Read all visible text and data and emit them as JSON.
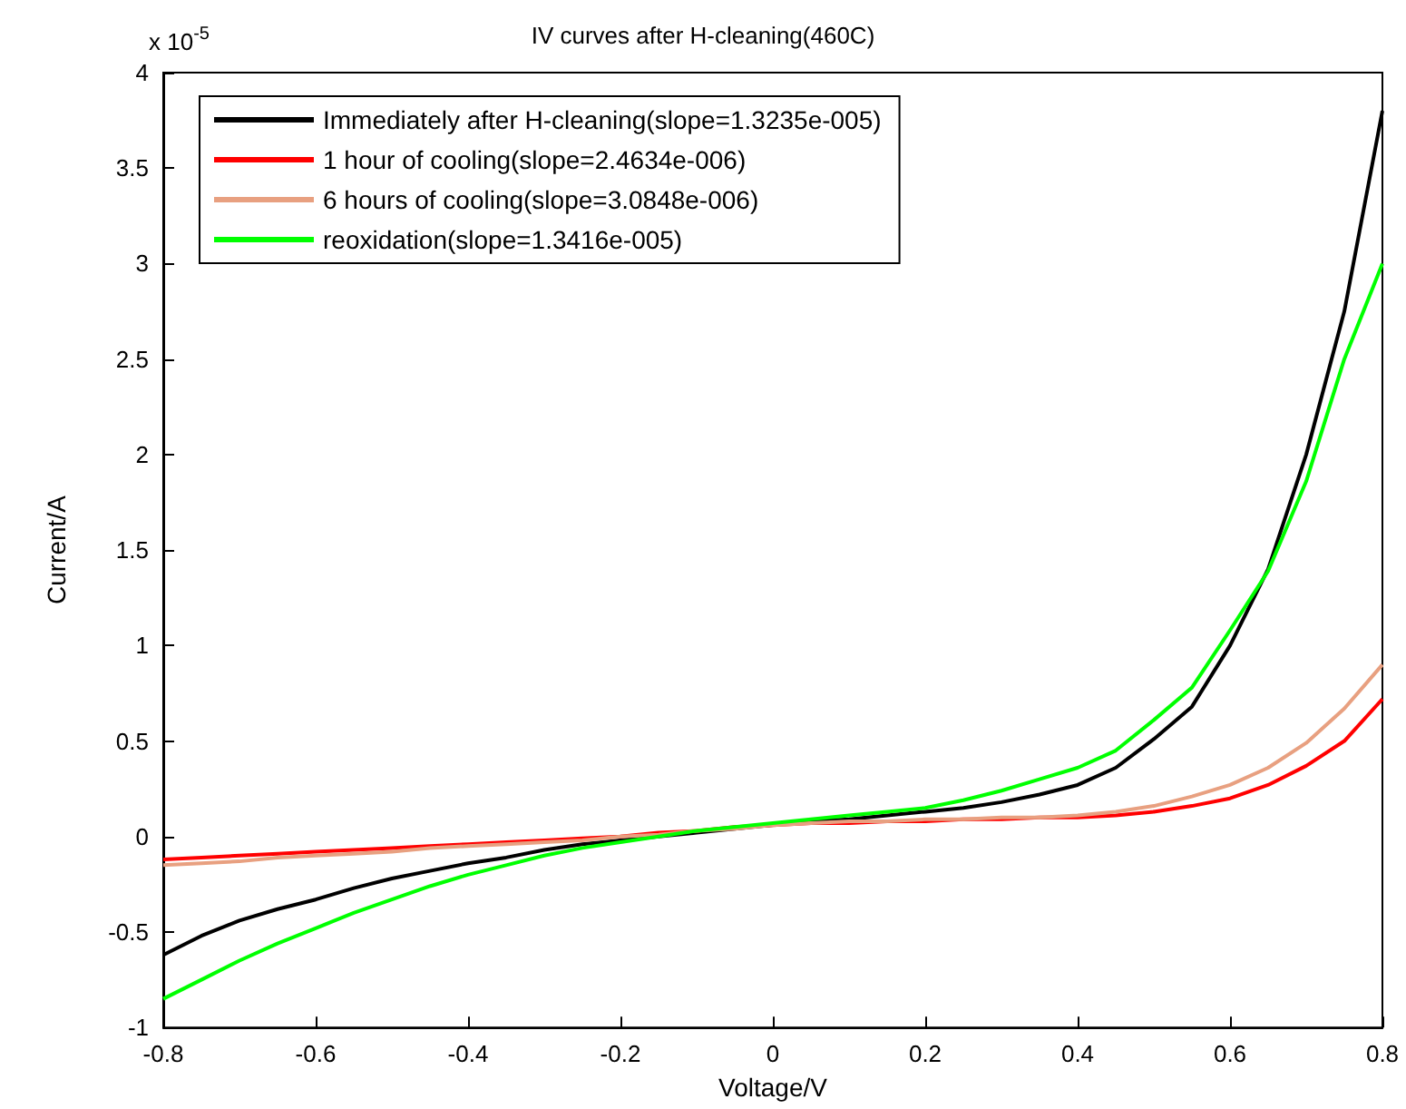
{
  "chart_data": {
    "type": "line",
    "title": "IV curves after H-cleaning(460C)",
    "xlabel": "Voltage/V",
    "ylabel": "Current/A",
    "annotations": [
      "x 10$^{-5}$"
    ],
    "x": [
      -0.8,
      -0.75,
      -0.7,
      -0.65,
      -0.6,
      -0.55,
      -0.5,
      -0.45,
      -0.4,
      -0.35,
      -0.3,
      -0.25,
      -0.2,
      -0.15,
      -0.1,
      -0.05,
      0,
      0.05,
      0.1,
      0.15,
      0.2,
      0.25,
      0.3,
      0.35,
      0.4,
      0.45,
      0.5,
      0.55,
      0.6,
      0.65,
      0.7,
      0.75,
      0.8
    ],
    "series": [
      {
        "name": "Immediately after H-cleaning(slope=1.3235e-005)",
        "color": "#000000",
        "values": [
          -0.62,
          -0.52,
          -0.44,
          -0.38,
          -0.33,
          -0.27,
          -0.22,
          -0.18,
          -0.14,
          -0.11,
          -0.07,
          -0.04,
          -0.02,
          0.0,
          0.02,
          0.04,
          0.06,
          0.08,
          0.09,
          0.11,
          0.13,
          0.15,
          0.18,
          0.22,
          0.27,
          0.36,
          0.51,
          0.68,
          1.0,
          1.4,
          2.0,
          2.75,
          3.8
        ]
      },
      {
        "name": "1 hour of cooling(slope=2.4634e-006)",
        "color": "#ff0000",
        "values": [
          -0.12,
          -0.11,
          -0.1,
          -0.09,
          -0.08,
          -0.07,
          -0.06,
          -0.05,
          -0.04,
          -0.03,
          -0.02,
          -0.01,
          0.0,
          0.02,
          0.03,
          0.05,
          0.06,
          0.07,
          0.07,
          0.08,
          0.08,
          0.09,
          0.09,
          0.1,
          0.1,
          0.11,
          0.13,
          0.16,
          0.2,
          0.27,
          0.37,
          0.5,
          0.72
        ]
      },
      {
        "name": "6 hours of cooling(slope=3.0848e-006)",
        "color": "#e8a080",
        "values": [
          -0.15,
          -0.14,
          -0.13,
          -0.11,
          -0.1,
          -0.09,
          -0.08,
          -0.06,
          -0.05,
          -0.04,
          -0.03,
          -0.02,
          0.0,
          0.01,
          0.03,
          0.04,
          0.06,
          0.07,
          0.08,
          0.08,
          0.09,
          0.09,
          0.1,
          0.1,
          0.11,
          0.13,
          0.16,
          0.21,
          0.27,
          0.36,
          0.49,
          0.67,
          0.9
        ]
      },
      {
        "name": "reoxidation(slope=1.3416e-005)",
        "color": "#00ff00",
        "values": [
          -0.85,
          -0.75,
          -0.65,
          -0.56,
          -0.48,
          -0.4,
          -0.33,
          -0.26,
          -0.2,
          -0.15,
          -0.1,
          -0.06,
          -0.03,
          0.0,
          0.03,
          0.05,
          0.07,
          0.09,
          0.11,
          0.13,
          0.15,
          0.19,
          0.24,
          0.3,
          0.36,
          0.45,
          0.61,
          0.78,
          1.08,
          1.39,
          1.86,
          2.5,
          3.0
        ]
      }
    ],
    "xlim": [
      -0.8,
      0.8
    ],
    "xticks": [
      -0.8,
      -0.6,
      -0.4,
      -0.2,
      0,
      0.2,
      0.4,
      0.6,
      0.8
    ],
    "ylim": [
      -1,
      4
    ],
    "yticks": [
      -1,
      -0.5,
      0,
      0.5,
      1,
      1.5,
      2,
      2.5,
      3,
      3.5,
      4
    ],
    "grid": false,
    "legend": "top left",
    "marker": "none",
    "line_style": "solid"
  }
}
